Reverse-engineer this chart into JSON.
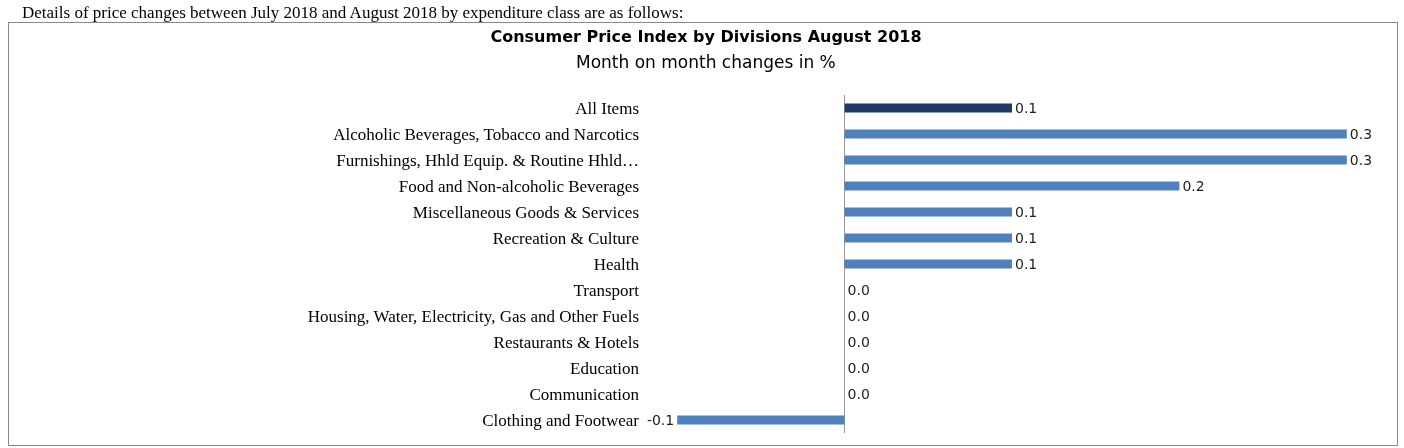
{
  "chart_data": {
    "type": "bar",
    "orientation": "horizontal",
    "title": "Consumer Price Index by Divisions August 2018",
    "subtitle": "Month on month changes in %",
    "annotations": [
      "Details of price changes between July 2018 and August 2018 by expenditure class are as follows:"
    ],
    "categories": [
      "All Items",
      "Alcoholic Beverages, Tobacco and Narcotics",
      "Furnishings, Hhld Equip. & Routine Hhld…",
      "Food and Non-alcoholic Beverages",
      "Miscellaneous Goods & Services",
      "Recreation & Culture",
      "Health",
      "Transport",
      "Housing, Water, Electricity, Gas and Other Fuels",
      "Restaurants & Hotels",
      "Education",
      "Communication",
      "Clothing and Footwear"
    ],
    "values": [
      0.1,
      0.3,
      0.3,
      0.2,
      0.1,
      0.1,
      0.1,
      0,
      0,
      0,
      0,
      0,
      -0.1
    ],
    "value_labels": [
      "0.1",
      "0.3",
      "0.3",
      "0.2",
      "0.1",
      "0.1",
      "0.1",
      "0.0",
      "0.0",
      "0.0",
      "0.0",
      "0.0",
      "-0.1"
    ],
    "colors": [
      "#1f3864",
      "#4f81bd",
      "#4f81bd",
      "#4f81bd",
      "#4f81bd",
      "#4f81bd",
      "#4f81bd",
      "#4f81bd",
      "#4f81bd",
      "#4f81bd",
      "#4f81bd",
      "#4f81bd",
      "#4f81bd"
    ],
    "tick_labels": "y",
    "grid": false
  }
}
